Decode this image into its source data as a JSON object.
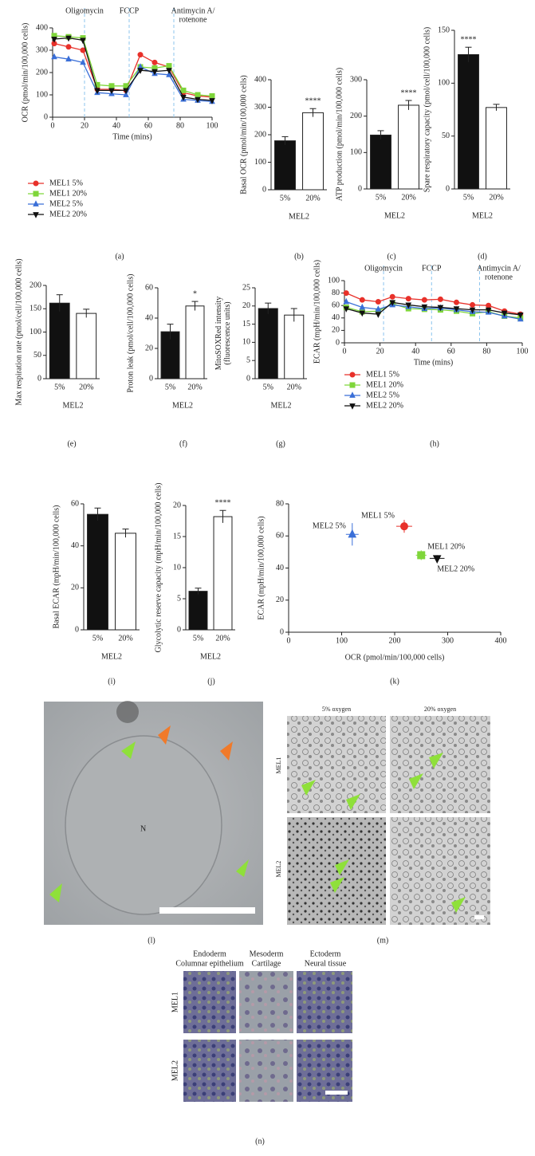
{
  "chart_data": [
    {
      "type": "line",
      "label": "(a)",
      "ylabel": "OCR (pmol/min/100,000 cells)",
      "xlabel": "Time (mins)",
      "x": [
        1,
        10,
        19,
        28,
        37,
        46,
        55,
        64,
        73,
        82,
        91,
        100
      ],
      "xlim": [
        0,
        100
      ],
      "xticks": [
        0,
        20,
        40,
        60,
        80,
        100
      ],
      "ylim": [
        0,
        400
      ],
      "yticks": [
        0,
        100,
        200,
        300,
        400
      ],
      "injections": [
        {
          "label": [
            "Oligomycin"
          ],
          "x": 20
        },
        {
          "label": [
            "FCCP"
          ],
          "x": 48
        },
        {
          "label": [
            "Antimycin A/",
            "rotenone"
          ],
          "x": 76
        }
      ],
      "series": [
        {
          "name": "MEL1 5%",
          "color": "#e8312a",
          "marker": "circle",
          "values": [
            330,
            315,
            300,
            125,
            125,
            120,
            280,
            245,
            225,
            110,
            95,
            90
          ]
        },
        {
          "name": "MEL1 20%",
          "color": "#7fd63a",
          "marker": "square",
          "values": [
            365,
            360,
            355,
            145,
            140,
            140,
            225,
            220,
            230,
            120,
            100,
            95
          ]
        },
        {
          "name": "MEL2 5%",
          "color": "#3a6fd8",
          "marker": "triangle",
          "values": [
            270,
            260,
            245,
            110,
            105,
            100,
            225,
            195,
            190,
            80,
            75,
            70
          ]
        },
        {
          "name": "MEL2 20%",
          "color": "#111111",
          "marker": "triangle-down",
          "values": [
            350,
            355,
            345,
            120,
            120,
            120,
            210,
            205,
            210,
            90,
            80,
            75
          ]
        }
      ]
    },
    {
      "type": "bar",
      "label": "(b)",
      "ylabel": "Basal OCR (pmol/min/100,000 cells)",
      "xlabel": "MEL2",
      "significance": "****",
      "categories": [
        "5%",
        "20%"
      ],
      "values": [
        178,
        280
      ],
      "errors": [
        15,
        15
      ],
      "colors": [
        "#111111",
        "#ffffff"
      ],
      "ylim": [
        0,
        400
      ],
      "yticks": [
        0,
        100,
        200,
        300,
        400
      ]
    },
    {
      "type": "bar",
      "label": "(c)",
      "ylabel": "ATP production (pmol/min/100,000 cells)",
      "xlabel": "MEL2",
      "significance": "****",
      "categories": [
        "5%",
        "20%"
      ],
      "values": [
        148,
        230
      ],
      "errors": [
        12,
        13
      ],
      "colors": [
        "#111111",
        "#ffffff"
      ],
      "ylim": [
        0,
        300
      ],
      "yticks": [
        0,
        100,
        200,
        300
      ]
    },
    {
      "type": "bar",
      "label": "(d)",
      "ylabel": "Spare respiratory capacity (pmol/cell/100,000 cells)",
      "xlabel": "MEL2",
      "significance": "****",
      "categories": [
        "5%",
        "20%"
      ],
      "values": [
        127,
        77
      ],
      "errors": [
        7,
        3
      ],
      "colors": [
        "#111111",
        "#ffffff"
      ],
      "ylim": [
        0,
        150
      ],
      "yticks": [
        0,
        50,
        100,
        150
      ]
    },
    {
      "type": "bar",
      "label": "(e)",
      "ylabel": "Max respiration rate (pmol/cell/100,000 cells)",
      "xlabel": "MEL2",
      "categories": [
        "5%",
        "20%"
      ],
      "values": [
        162,
        140
      ],
      "errors": [
        18,
        9
      ],
      "colors": [
        "#111111",
        "#ffffff"
      ],
      "ylim": [
        0,
        200
      ],
      "yticks": [
        0,
        50,
        100,
        150,
        200
      ]
    },
    {
      "type": "bar",
      "label": "(f)",
      "ylabel": "Proton leak (pmol/cell/100,000 cells)",
      "xlabel": "MEL2",
      "significance": "*",
      "categories": [
        "5%",
        "20%"
      ],
      "values": [
        31,
        48
      ],
      "errors": [
        5,
        3
      ],
      "colors": [
        "#111111",
        "#ffffff"
      ],
      "ylim": [
        0,
        60
      ],
      "yticks": [
        0,
        20,
        40,
        60
      ]
    },
    {
      "type": "bar",
      "label": "(g)",
      "ylabel": [
        "MitoSOXRed intensity",
        "(fluorescence units)"
      ],
      "xlabel": "MEL2",
      "categories": [
        "5%",
        "20%"
      ],
      "values": [
        19.3,
        17.5
      ],
      "errors": [
        1.5,
        1.8
      ],
      "colors": [
        "#111111",
        "#ffffff"
      ],
      "ylim": [
        0,
        25
      ],
      "yticks": [
        0,
        5,
        10,
        15,
        20,
        25
      ]
    },
    {
      "type": "line",
      "label": "(h)",
      "ylabel": "ECAR (mpH/min/100,000 cells)",
      "xlabel": "Time (mins)",
      "x": [
        1,
        10,
        19,
        27,
        36,
        45,
        54,
        63,
        72,
        81,
        90,
        99
      ],
      "xlim": [
        0,
        100
      ],
      "xticks": [
        0,
        20,
        40,
        60,
        80,
        100
      ],
      "ylim": [
        0,
        100
      ],
      "yticks": [
        0,
        20,
        40,
        60,
        80,
        100
      ],
      "injections": [
        {
          "label": [
            "Oligomycin"
          ],
          "x": 22
        },
        {
          "label": [
            "FCCP"
          ],
          "x": 49
        },
        {
          "label": [
            "Antimycin A/",
            "rotenone"
          ],
          "x": 76
        }
      ],
      "series": [
        {
          "name": "MEL1 5%",
          "color": "#e8312a",
          "marker": "circle",
          "values": [
            80,
            69,
            66,
            74,
            71,
            69,
            70,
            65,
            61,
            60,
            51,
            46
          ]
        },
        {
          "name": "MEL1 20%",
          "color": "#7fd63a",
          "marker": "square",
          "values": [
            57,
            50,
            51,
            63,
            55,
            54,
            53,
            51,
            47,
            50,
            43,
            40
          ]
        },
        {
          "name": "MEL2 5%",
          "color": "#3a6fd8",
          "marker": "triangle",
          "values": [
            66,
            57,
            54,
            61,
            58,
            55,
            56,
            53,
            50,
            49,
            43,
            38
          ]
        },
        {
          "name": "MEL2 20%",
          "color": "#111111",
          "marker": "triangle-down",
          "values": [
            55,
            48,
            46,
            65,
            61,
            58,
            57,
            55,
            53,
            53,
            48,
            45
          ]
        }
      ]
    },
    {
      "type": "bar",
      "label": "(i)",
      "ylabel": "Basal ECAR (mpH/min/100,000 cells)",
      "xlabel": "MEL2",
      "categories": [
        "5%",
        "20%"
      ],
      "values": [
        55,
        46
      ],
      "errors": [
        3,
        2
      ],
      "colors": [
        "#111111",
        "#ffffff"
      ],
      "ylim": [
        0,
        60
      ],
      "yticks": [
        0,
        20,
        40,
        60
      ]
    },
    {
      "type": "bar",
      "label": "(j)",
      "ylabel": "Glycolytic reserve capacity (mpH/min/100,000 cells)",
      "xlabel": "MEL2",
      "significance": "****",
      "categories": [
        "5%",
        "20%"
      ],
      "values": [
        6.2,
        18.2
      ],
      "errors": [
        0.5,
        1
      ],
      "colors": [
        "#111111",
        "#ffffff"
      ],
      "ylim": [
        0,
        20
      ],
      "yticks": [
        0,
        5,
        10,
        15,
        20
      ]
    },
    {
      "type": "scatter",
      "label": "(k)",
      "ylabel": "ECAR (mpH/min/100,000 cells)",
      "xlabel": "OCR (pmol/min/100,000 cells)",
      "xlim": [
        0,
        400
      ],
      "xticks": [
        0,
        100,
        200,
        300,
        400
      ],
      "ylim": [
        0,
        80
      ],
      "yticks": [
        0,
        20,
        40,
        60,
        80
      ],
      "series": [
        {
          "name": "MEL1 5%",
          "color": "#e8312a",
          "marker": "circle",
          "x": [
            218
          ],
          "values": [
            66
          ],
          "xerr": [
            15
          ],
          "yerr": [
            4
          ]
        },
        {
          "name": "MEL1 20%",
          "color": "#7fd63a",
          "marker": "square",
          "x": [
            250
          ],
          "values": [
            48
          ],
          "xerr": [
            10
          ],
          "yerr": [
            3
          ]
        },
        {
          "name": "MEL2 5%",
          "color": "#3a6fd8",
          "marker": "triangle",
          "x": [
            120
          ],
          "values": [
            61
          ],
          "xerr": [
            12
          ],
          "yerr": [
            7
          ]
        },
        {
          "name": "MEL2 20%",
          "color": "#111111",
          "marker": "triangle-down",
          "x": [
            280
          ],
          "values": [
            46
          ],
          "xerr": [
            14
          ],
          "yerr": [
            2
          ]
        }
      ]
    }
  ],
  "micrographs": {
    "l": {
      "label": "(l)",
      "nucleus": "N"
    },
    "m": {
      "label": "(m)",
      "columns": [
        "5% oxygen",
        "20% oxygen"
      ],
      "rows": [
        "MEL1",
        "MEL2"
      ]
    },
    "n": {
      "label": "(n)",
      "columns": [
        [
          "Endoderm",
          "Columnar epithelium"
        ],
        [
          "Mesoderm",
          "Cartilage"
        ],
        [
          "Ectoderm",
          "Neural tissue"
        ]
      ],
      "rows": [
        "MEL1",
        "MEL2"
      ]
    }
  }
}
